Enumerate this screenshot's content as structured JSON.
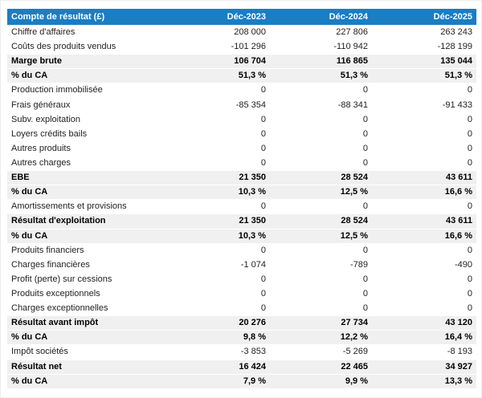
{
  "colors": {
    "header_bg": "#1b7dc2",
    "shaded_row": "#f0f0f0",
    "header_text": "#ffffff"
  },
  "table": {
    "title": "Compte de résultat (£)",
    "columns": [
      "Déc-2023",
      "Déc-2024",
      "Déc-2025"
    ],
    "rows": [
      {
        "label": "Chiffre d'affaires",
        "values": [
          "208 000",
          "227 806",
          "263 243"
        ],
        "emphasis": false
      },
      {
        "label": "Coûts des produits vendus",
        "values": [
          "-101 296",
          "-110 942",
          "-128 199"
        ],
        "emphasis": false
      },
      {
        "label": "Marge brute",
        "values": [
          "106 704",
          "116 865",
          "135 044"
        ],
        "emphasis": true
      },
      {
        "label": "% du CA",
        "values": [
          "51,3 %",
          "51,3 %",
          "51,3 %"
        ],
        "emphasis": true
      },
      {
        "label": "Production immobilisée",
        "values": [
          "0",
          "0",
          "0"
        ],
        "emphasis": false
      },
      {
        "label": "Frais généraux",
        "values": [
          "-85 354",
          "-88 341",
          "-91 433"
        ],
        "emphasis": false
      },
      {
        "label": "Subv. exploitation",
        "values": [
          "0",
          "0",
          "0"
        ],
        "emphasis": false
      },
      {
        "label": "Loyers crédits bails",
        "values": [
          "0",
          "0",
          "0"
        ],
        "emphasis": false
      },
      {
        "label": "Autres produits",
        "values": [
          "0",
          "0",
          "0"
        ],
        "emphasis": false
      },
      {
        "label": "Autres charges",
        "values": [
          "0",
          "0",
          "0"
        ],
        "emphasis": false
      },
      {
        "label": "EBE",
        "values": [
          "21 350",
          "28 524",
          "43 611"
        ],
        "emphasis": true
      },
      {
        "label": "% du CA",
        "values": [
          "10,3 %",
          "12,5 %",
          "16,6 %"
        ],
        "emphasis": true
      },
      {
        "label": "Amortissements et provisions",
        "values": [
          "0",
          "0",
          "0"
        ],
        "emphasis": false
      },
      {
        "label": "Résultat d'exploitation",
        "values": [
          "21 350",
          "28 524",
          "43 611"
        ],
        "emphasis": true
      },
      {
        "label": "% du CA",
        "values": [
          "10,3 %",
          "12,5 %",
          "16,6 %"
        ],
        "emphasis": true
      },
      {
        "label": "Produits financiers",
        "values": [
          "0",
          "0",
          "0"
        ],
        "emphasis": false
      },
      {
        "label": "Charges financières",
        "values": [
          "-1 074",
          "-789",
          "-490"
        ],
        "emphasis": false
      },
      {
        "label": "Profit (perte) sur cessions",
        "values": [
          "0",
          "0",
          "0"
        ],
        "emphasis": false
      },
      {
        "label": "Produits exceptionnels",
        "values": [
          "0",
          "0",
          "0"
        ],
        "emphasis": false
      },
      {
        "label": "Charges exceptionnelles",
        "values": [
          "0",
          "0",
          "0"
        ],
        "emphasis": false
      },
      {
        "label": "Résultat avant impôt",
        "values": [
          "20 276",
          "27 734",
          "43 120"
        ],
        "emphasis": true
      },
      {
        "label": "% du CA",
        "values": [
          "9,8 %",
          "12,2 %",
          "16,4 %"
        ],
        "emphasis": true
      },
      {
        "label": "Impôt sociétés",
        "values": [
          "-3 853",
          "-5 269",
          "-8 193"
        ],
        "emphasis": false
      },
      {
        "label": "Résultat net",
        "values": [
          "16 424",
          "22 465",
          "34 927"
        ],
        "emphasis": true
      },
      {
        "label": "% du CA",
        "values": [
          "7,9 %",
          "9,9 %",
          "13,3 %"
        ],
        "emphasis": true
      }
    ]
  }
}
